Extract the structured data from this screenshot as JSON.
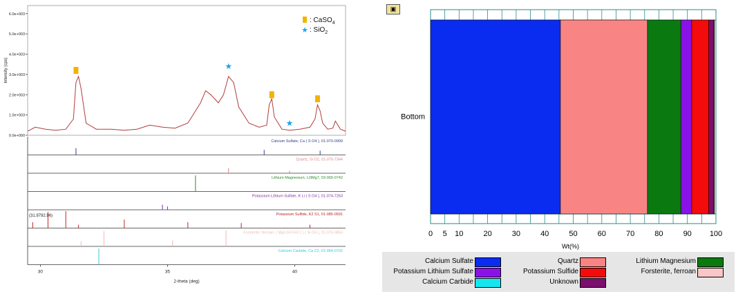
{
  "chart_data": [
    {
      "type": "line",
      "xlabel": "2-theta (deg)",
      "ylabel": "Intensity (cps)",
      "xlim": [
        29.5,
        42
      ],
      "ylim": [
        0,
        6.4
      ],
      "x_ticks": [
        30,
        35,
        40
      ],
      "y_ticks": [
        "0.0e+000",
        "1.0e+003",
        "2.0e+003",
        "3.0e+003",
        "4.0e+003",
        "5.0e+003",
        "6.0e+003"
      ],
      "series": [
        {
          "x": [
            29.5,
            29.8,
            30.2,
            30.6,
            31.0,
            31.3,
            31.4,
            31.5,
            31.6,
            31.8,
            32.2,
            32.8,
            33.3,
            33.8,
            34.3,
            34.8,
            35.3,
            35.8,
            36.0,
            36.3,
            36.5,
            36.7,
            37.0,
            37.2,
            37.4,
            37.6,
            37.8,
            38.2,
            38.6,
            38.9,
            39.0,
            39.1,
            39.2,
            39.5,
            39.8,
            40.2,
            40.6,
            40.8,
            40.9,
            41.0,
            41.1,
            41.3,
            41.5,
            41.6,
            41.8,
            42.0
          ],
          "y": [
            0.2,
            0.4,
            0.3,
            0.25,
            0.3,
            0.8,
            2.6,
            2.9,
            2.3,
            0.6,
            0.3,
            0.3,
            0.25,
            0.3,
            0.5,
            0.4,
            0.35,
            0.6,
            1.0,
            1.6,
            2.2,
            2.0,
            1.6,
            2.0,
            2.9,
            2.6,
            1.4,
            0.6,
            0.4,
            0.5,
            1.5,
            1.8,
            0.9,
            0.3,
            0.25,
            0.3,
            0.4,
            0.8,
            1.5,
            1.2,
            0.6,
            0.3,
            0.35,
            0.7,
            0.3,
            0.2
          ]
        }
      ],
      "legend": [
        {
          "symbol": "square",
          "color": "#f2b400",
          "label": ": CaSO",
          "sub": "4"
        },
        {
          "symbol": "star",
          "color": "#1fa2e8",
          "label": ": SiO",
          "sub": "2"
        }
      ],
      "peak_markers": [
        {
          "symbol": "square",
          "x": 31.4,
          "y": 3.2
        },
        {
          "symbol": "star",
          "x": 37.4,
          "y": 3.4
        },
        {
          "symbol": "square",
          "x": 39.1,
          "y": 2.0
        },
        {
          "symbol": "star",
          "x": 39.8,
          "y": 0.6
        },
        {
          "symbol": "square",
          "x": 40.9,
          "y": 1.8
        }
      ],
      "reference_patterns": [
        {
          "label": "Calcium Sulfate, Ca ( S O4 ), 01-070-0909",
          "color": "#2d3c8c",
          "lines": [
            [
              31.4,
              0.4
            ],
            [
              38.8,
              0.3
            ],
            [
              41.0,
              0.25
            ]
          ]
        },
        {
          "label": "Quartz, Si O2, 01-070-7344",
          "color": "#e08080",
          "lines": [
            [
              37.4,
              0.3
            ],
            [
              39.8,
              0.15
            ]
          ]
        },
        {
          "label": "Lithium Magnesium, Li3Mg7, 03-065-0742",
          "color": "#2a8c2a",
          "lines": [
            [
              36.1,
              0.95
            ]
          ]
        },
        {
          "label": "Potassium Lithium Sulfate, K Li ( S O4 ), 01-074-7263",
          "color": "#7d2c9e",
          "lines": [
            [
              34.8,
              0.3
            ],
            [
              35.0,
              0.2
            ]
          ]
        },
        {
          "label": "Potassium Sulfide, K2 S1, 01-085-0591",
          "color": "#c02020",
          "lines": [
            [
              29.7,
              0.35
            ],
            [
              30.3,
              0.95
            ],
            [
              31.0,
              1.0
            ],
            [
              31.5,
              0.2
            ],
            [
              33.3,
              0.5
            ],
            [
              35.8,
              0.35
            ],
            [
              37.9,
              0.3
            ],
            [
              40.6,
              0.2
            ]
          ],
          "note": "(31.9792.96)"
        },
        {
          "label": "Forsterite, ferroan, ( Mg0.93 Fe0.1 ) ( Si O4 ), 01-076-0853",
          "color": "#f0b8b0",
          "lines": [
            [
              31.6,
              0.3
            ],
            [
              32.5,
              0.9
            ],
            [
              35.2,
              0.35
            ],
            [
              37.3,
              0.95
            ]
          ]
        },
        {
          "label": "Calcium Carbide, Ca C2, 01-084-0792",
          "color": "#30c8e0",
          "lines": [
            [
              32.3,
              0.95
            ]
          ]
        }
      ]
    },
    {
      "type": "bar",
      "orientation": "horizontal",
      "stacked": true,
      "categories": [
        "Bottom"
      ],
      "xlabel": "Wt(%)",
      "xlim": [
        0,
        100
      ],
      "x_ticks": [
        0,
        5,
        10,
        20,
        30,
        40,
        50,
        60,
        70,
        80,
        90,
        100
      ],
      "series": [
        {
          "name": "Calcium Sulfate",
          "color": "#0a2cf0",
          "values": [
            45.5
          ]
        },
        {
          "name": "Quartz",
          "color": "#f98484",
          "values": [
            30.5
          ]
        },
        {
          "name": "Lithium Magnesium",
          "color": "#0a7a10",
          "values": [
            11.7
          ]
        },
        {
          "name": "Potassium Lithium Sulfate",
          "color": "#8a12e8",
          "values": [
            3.8
          ]
        },
        {
          "name": "Potassium Sulfide",
          "color": "#f40b0b",
          "values": [
            6.0
          ]
        },
        {
          "name": "Unknown",
          "color": "#7b0f6c",
          "values": [
            1.8
          ]
        },
        {
          "name": "Forsterite, ferroan",
          "color": "#f8c6c6",
          "values": [
            0.2
          ]
        },
        {
          "name": "Calcium Carbide",
          "color": "#14e6f0",
          "values": [
            0.0
          ]
        }
      ],
      "legend_layout": [
        [
          "Calcium Sulfate",
          "Quartz",
          "Lithium Magnesium"
        ],
        [
          "Potassium Lithium Sulfate",
          "Potassium Sulfide",
          "Forsterite, ferroan"
        ],
        [
          "Calcium Carbide",
          "Unknown"
        ]
      ]
    }
  ]
}
